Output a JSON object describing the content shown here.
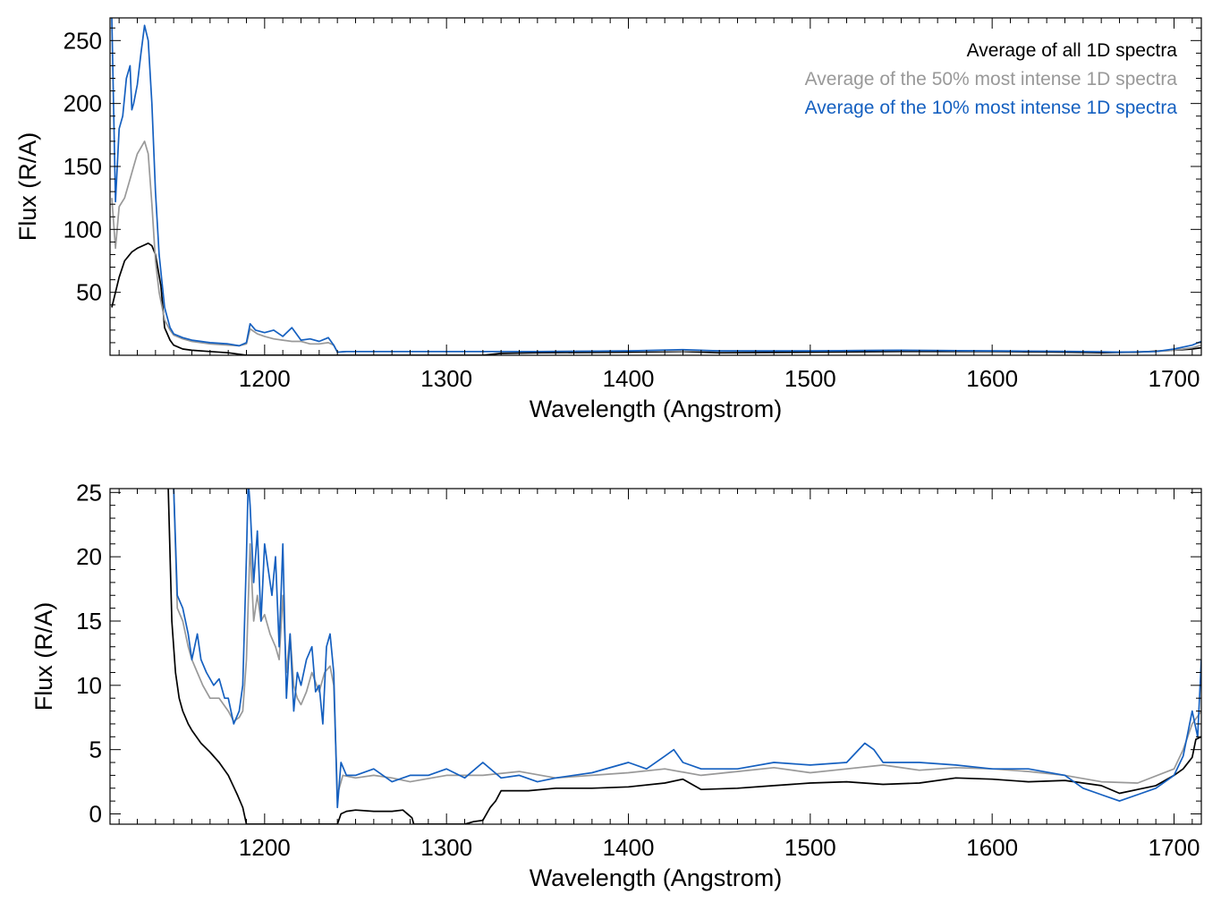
{
  "chart_data": [
    {
      "type": "line",
      "xlabel": "Wavelength (Angstrom)",
      "ylabel": "Flux (R/A)",
      "xlim": [
        1115,
        1715
      ],
      "ylim": [
        0,
        268
      ],
      "xticks": [
        1200,
        1300,
        1400,
        1500,
        1600,
        1700
      ],
      "yticks": [
        50,
        100,
        150,
        200,
        250
      ],
      "legend_position": "top-right",
      "legend": [
        {
          "label": "Average of all 1D spectra",
          "color": "#000000"
        },
        {
          "label": "Average of the 50% most intense 1D spectra",
          "color": "#999999"
        },
        {
          "label": "Average of the 10% most intense 1D spectra",
          "color": "#1560c0"
        }
      ],
      "series": [
        {
          "color": "#000000",
          "x": [
            1116,
            1120,
            1123,
            1127,
            1130,
            1133,
            1136,
            1138,
            1140,
            1143,
            1145,
            1148,
            1150,
            1155,
            1160,
            1170,
            1180,
            1190,
            1200,
            1220,
            1240,
            1260,
            1280,
            1300,
            1320,
            1330,
            1350,
            1400,
            1430,
            1450,
            1500,
            1550,
            1580,
            1600,
            1640,
            1660,
            1680,
            1700,
            1710,
            1715
          ],
          "y": [
            38,
            62,
            75,
            82,
            85,
            87,
            89,
            87,
            80,
            55,
            22,
            12,
            8,
            5,
            4,
            3,
            2,
            0,
            0,
            0,
            0,
            0,
            0,
            0,
            0,
            1.5,
            2,
            2.5,
            3,
            2,
            2.5,
            3,
            3,
            3,
            2.5,
            2,
            2.5,
            4,
            5,
            6
          ]
        },
        {
          "color": "#999999",
          "x": [
            1116,
            1118,
            1120,
            1123,
            1126,
            1128,
            1130,
            1132,
            1134,
            1136,
            1138,
            1140,
            1142,
            1145,
            1148,
            1150,
            1155,
            1160,
            1170,
            1180,
            1186,
            1190,
            1192,
            1196,
            1200,
            1205,
            1210,
            1215,
            1220,
            1225,
            1230,
            1235,
            1238,
            1240,
            1245,
            1260,
            1280,
            1300,
            1330,
            1350,
            1400,
            1450,
            1500,
            1550,
            1600,
            1650,
            1670,
            1690,
            1700,
            1710,
            1715
          ],
          "y": [
            125,
            85,
            118,
            125,
            140,
            150,
            160,
            165,
            170,
            160,
            120,
            75,
            50,
            28,
            20,
            16,
            13,
            11,
            9,
            8,
            7.5,
            9,
            21,
            17,
            15,
            13,
            12,
            11,
            11,
            9,
            9,
            10,
            8,
            2.5,
            3,
            3,
            3,
            3,
            3,
            3,
            3.5,
            3.5,
            3.5,
            4,
            3.5,
            3,
            2.5,
            3,
            4,
            6,
            8
          ]
        },
        {
          "color": "#1560c0",
          "x": [
            1116,
            1118,
            1120,
            1122,
            1124,
            1126,
            1127,
            1128,
            1130,
            1132,
            1134,
            1136,
            1138,
            1140,
            1142,
            1145,
            1148,
            1150,
            1155,
            1160,
            1165,
            1170,
            1180,
            1186,
            1190,
            1192,
            1195,
            1200,
            1205,
            1210,
            1215,
            1220,
            1225,
            1230,
            1235,
            1238,
            1240,
            1245,
            1260,
            1280,
            1300,
            1330,
            1350,
            1400,
            1430,
            1450,
            1500,
            1550,
            1600,
            1650,
            1670,
            1690,
            1700,
            1710,
            1715
          ],
          "y": [
            268,
            122,
            180,
            190,
            220,
            230,
            195,
            200,
            215,
            240,
            262,
            250,
            200,
            130,
            80,
            38,
            22,
            17,
            14,
            12,
            11,
            10,
            9,
            7.5,
            10,
            25,
            20,
            18,
            20,
            15,
            22,
            12,
            13,
            11,
            14,
            8,
            2.5,
            3,
            3,
            3,
            3,
            3,
            3,
            3.5,
            4.5,
            3.5,
            3.5,
            4,
            3.5,
            3,
            2.5,
            3,
            5,
            8,
            11
          ]
        }
      ]
    },
    {
      "type": "line",
      "xlabel": "Wavelength (Angstrom)",
      "ylabel": "Flux (R/A)",
      "xlim": [
        1115,
        1715
      ],
      "ylim": [
        -0.8,
        25.3
      ],
      "xticks": [
        1200,
        1300,
        1400,
        1500,
        1600,
        1700
      ],
      "yticks": [
        0,
        5,
        10,
        15,
        20,
        25
      ],
      "series": [
        {
          "color": "#000000",
          "x": [
            1147,
            1149,
            1151,
            1153,
            1155,
            1158,
            1160,
            1165,
            1170,
            1175,
            1180,
            1185,
            1188,
            1190,
            1240,
            1242,
            1245,
            1250,
            1260,
            1270,
            1276,
            1281,
            1282,
            1310,
            1315,
            1320,
            1324,
            1327,
            1330,
            1345,
            1360,
            1380,
            1400,
            1420,
            1430,
            1440,
            1460,
            1480,
            1500,
            1520,
            1540,
            1560,
            1580,
            1600,
            1620,
            1640,
            1660,
            1670,
            1680,
            1690,
            1700,
            1705,
            1710,
            1712,
            1715
          ],
          "y": [
            25.3,
            15,
            11,
            9,
            8,
            7,
            6.5,
            5.5,
            4.8,
            4,
            3,
            1.5,
            0.5,
            -0.8,
            -0.8,
            0,
            0.2,
            0.3,
            0.2,
            0.2,
            0.3,
            -0.3,
            -0.8,
            -0.8,
            -0.6,
            -0.5,
            0.5,
            1,
            1.8,
            1.8,
            2,
            2,
            2.1,
            2.4,
            2.7,
            1.9,
            2,
            2.2,
            2.4,
            2.5,
            2.3,
            2.4,
            2.8,
            2.7,
            2.5,
            2.6,
            2.2,
            1.6,
            1.9,
            2.2,
            3,
            3.5,
            4.4,
            5.8,
            6
          ]
        },
        {
          "color": "#999999",
          "x": [
            1150,
            1152,
            1155,
            1158,
            1160,
            1163,
            1166,
            1170,
            1175,
            1180,
            1183,
            1186,
            1188,
            1190,
            1192,
            1194,
            1196,
            1198,
            1200,
            1203,
            1206,
            1208,
            1210,
            1212,
            1214,
            1216,
            1218,
            1220,
            1223,
            1226,
            1230,
            1233,
            1236,
            1238,
            1240,
            1243,
            1250,
            1260,
            1270,
            1280,
            1300,
            1320,
            1340,
            1360,
            1380,
            1400,
            1420,
            1440,
            1460,
            1480,
            1500,
            1520,
            1540,
            1560,
            1580,
            1600,
            1620,
            1640,
            1660,
            1680,
            1700,
            1705,
            1710,
            1715
          ],
          "y": [
            25.3,
            16,
            15,
            13,
            12,
            11,
            10,
            9,
            9,
            8,
            7.2,
            7.5,
            8,
            12,
            21,
            15,
            17,
            15,
            15.5,
            14,
            13,
            12,
            17,
            11,
            14,
            10,
            9,
            8.5,
            9.5,
            11,
            9.5,
            11,
            11.5,
            10,
            1.5,
            3,
            2.8,
            3,
            2.8,
            2.5,
            3,
            3,
            3.3,
            2.8,
            3,
            3.2,
            3.5,
            3,
            3.3,
            3.6,
            3.2,
            3.5,
            3.8,
            3.4,
            3.6,
            3.5,
            3.3,
            3,
            2.5,
            2.4,
            3.5,
            5,
            7,
            8
          ]
        },
        {
          "color": "#1560c0",
          "x": [
            1150,
            1152,
            1155,
            1158,
            1160,
            1163,
            1165,
            1168,
            1172,
            1175,
            1178,
            1180,
            1183,
            1186,
            1188,
            1190,
            1191,
            1192,
            1194,
            1196,
            1198,
            1200,
            1202,
            1204,
            1206,
            1208,
            1210,
            1212,
            1214,
            1216,
            1218,
            1220,
            1223,
            1226,
            1228,
            1230,
            1232,
            1234,
            1236,
            1238,
            1240,
            1242,
            1245,
            1250,
            1260,
            1270,
            1280,
            1290,
            1300,
            1310,
            1320,
            1330,
            1340,
            1350,
            1360,
            1380,
            1400,
            1410,
            1420,
            1425,
            1430,
            1440,
            1460,
            1480,
            1500,
            1520,
            1530,
            1535,
            1540,
            1560,
            1580,
            1600,
            1620,
            1640,
            1650,
            1660,
            1670,
            1680,
            1690,
            1700,
            1705,
            1710,
            1713,
            1715
          ],
          "y": [
            25.3,
            17,
            16,
            14,
            12,
            14,
            12,
            11,
            10,
            10.5,
            9,
            9,
            7,
            8,
            10,
            20,
            26,
            24,
            18,
            22,
            15,
            21,
            19,
            17,
            20,
            13,
            21,
            9,
            14,
            8,
            11,
            10,
            12,
            13,
            9.5,
            10,
            7,
            13,
            14,
            11,
            0.5,
            4,
            3,
            3,
            3.5,
            2.5,
            3,
            3,
            3.5,
            2.8,
            4,
            2.8,
            3,
            2.5,
            2.8,
            3.2,
            4,
            3.5,
            4.5,
            5,
            4,
            3.5,
            3.5,
            4,
            3.8,
            4,
            5.5,
            5,
            4,
            4,
            3.8,
            3.5,
            3.5,
            3,
            2,
            1.5,
            1,
            1.5,
            2,
            3,
            4.5,
            8,
            6,
            12
          ]
        }
      ]
    }
  ]
}
